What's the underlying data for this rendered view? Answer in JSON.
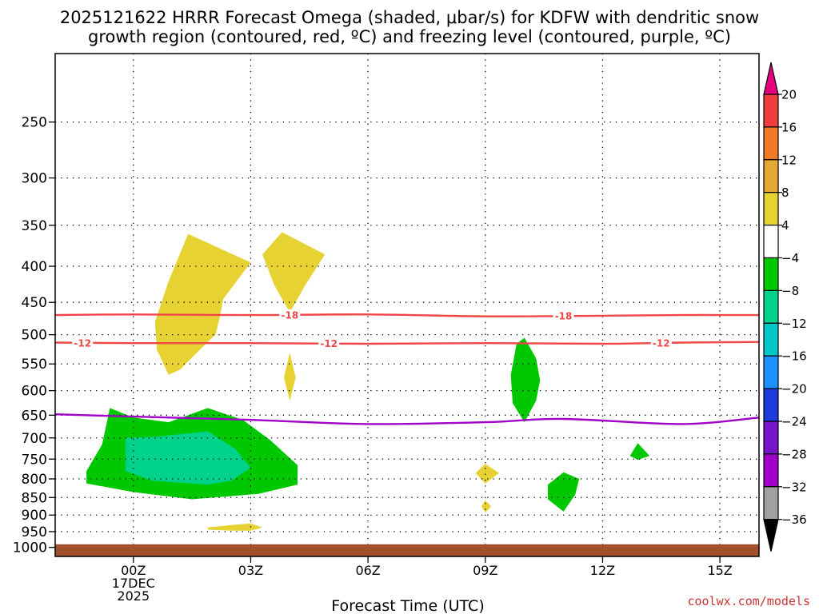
{
  "chart_data": {
    "type": "contour",
    "title_line1": "2025121622 HRRR Forecast Omega (shaded, μbar/s) for KDFW with dendritic snow",
    "title_line2": "growth region (contoured, red, ºC) and freezing level (contoured, purple, ºC)",
    "xlabel": "Forecast Time (UTC)",
    "x_ticks": [
      {
        "t": 0,
        "label": "00Z",
        "sub1": "17DEC",
        "sub2": "2025"
      },
      {
        "t": 3,
        "label": "03Z",
        "sub1": "",
        "sub2": ""
      },
      {
        "t": 6,
        "label": "06Z",
        "sub1": "",
        "sub2": ""
      },
      {
        "t": 9,
        "label": "09Z",
        "sub1": "",
        "sub2": ""
      },
      {
        "t": 12,
        "label": "12Z",
        "sub1": "",
        "sub2": ""
      },
      {
        "t": 15,
        "label": "15Z",
        "sub1": "",
        "sub2": ""
      }
    ],
    "xlim": [
      -2,
      16
    ],
    "y_ticks": [
      250,
      300,
      350,
      400,
      450,
      500,
      550,
      600,
      650,
      700,
      750,
      800,
      850,
      900,
      950,
      1000
    ],
    "ylim_hpa": [
      200,
      1030
    ],
    "colorbar": {
      "labels": [
        "20",
        "16",
        "12",
        "8",
        "4",
        "−4",
        "−8",
        "−12",
        "−16",
        "−20",
        "−24",
        "−28",
        "−32",
        "−36"
      ],
      "colors": [
        "#e6007e",
        "#f03c3c",
        "#f07a28",
        "#e6a832",
        "#e6d232",
        "#ffffff",
        "#00c800",
        "#00d28c",
        "#00c8c8",
        "#1e90ff",
        "#1e3cdc",
        "#7814c8",
        "#a000c8",
        "#a0a0a0",
        "#000000"
      ]
    },
    "contours": [
      {
        "name": "dgz-minus18",
        "color": "#f04646",
        "labels": [
          "-18",
          "-18"
        ],
        "points": [
          [
            -2,
            469
          ],
          [
            0,
            468
          ],
          [
            3,
            469
          ],
          [
            6,
            468
          ],
          [
            9,
            471
          ],
          [
            12,
            470
          ],
          [
            14,
            469
          ],
          [
            16,
            469
          ]
        ]
      },
      {
        "name": "dgz-minus12",
        "color": "#f04646",
        "labels": [
          "-12",
          "-12",
          "-12"
        ],
        "points": [
          [
            -2,
            513
          ],
          [
            0,
            514
          ],
          [
            3,
            514
          ],
          [
            6,
            515
          ],
          [
            9,
            514
          ],
          [
            12,
            515
          ],
          [
            14,
            513
          ],
          [
            16,
            512
          ]
        ]
      },
      {
        "name": "freezing-level",
        "color": "#a000c8",
        "labels": [],
        "points": [
          [
            -2,
            648
          ],
          [
            0,
            653
          ],
          [
            3,
            660
          ],
          [
            6,
            669
          ],
          [
            9,
            665
          ],
          [
            11,
            658
          ],
          [
            14,
            669
          ],
          [
            16,
            655
          ]
        ]
      }
    ],
    "regions": [
      {
        "name": "omega-plus4-upper-left",
        "value_band": "4 to 8",
        "color": "#e6d232",
        "points": [
          [
            1.4,
            360
          ],
          [
            2.1,
            375
          ],
          [
            3,
            395
          ],
          [
            2.3,
            445
          ],
          [
            2.2,
            475
          ],
          [
            2.1,
            500
          ],
          [
            1.7,
            525
          ],
          [
            1.2,
            560
          ],
          [
            0.9,
            570
          ],
          [
            0.6,
            525
          ],
          [
            0.55,
            480
          ],
          [
            0.9,
            420
          ]
        ]
      },
      {
        "name": "omega-plus4-upper-right",
        "value_band": "4 to 8",
        "color": "#e6d232",
        "points": [
          [
            3.3,
            385
          ],
          [
            3.8,
            358
          ],
          [
            4.3,
            370
          ],
          [
            4.9,
            385
          ],
          [
            4.4,
            425
          ],
          [
            4,
            465
          ],
          [
            3.6,
            425
          ]
        ]
      },
      {
        "name": "omega-plus4-spike",
        "value_band": "4 to 8",
        "color": "#e6d232",
        "points": [
          [
            4,
            530
          ],
          [
            4.15,
            575
          ],
          [
            4,
            620
          ],
          [
            3.85,
            575
          ]
        ]
      },
      {
        "name": "omega-plus4-small-1",
        "value_band": "4 to 8",
        "color": "#e6d232",
        "points": [
          [
            9,
            762
          ],
          [
            9.35,
            785
          ],
          [
            9,
            812
          ],
          [
            8.75,
            785
          ]
        ]
      },
      {
        "name": "omega-plus4-small-2",
        "value_band": "4 to 8",
        "color": "#e6d232",
        "points": [
          [
            9,
            858
          ],
          [
            9.15,
            875
          ],
          [
            9,
            893
          ],
          [
            8.9,
            875
          ]
        ]
      },
      {
        "name": "omega-plus4-bottom",
        "value_band": "4 to 8",
        "color": "#e6d232",
        "points": [
          [
            1.9,
            937
          ],
          [
            2.5,
            930
          ],
          [
            3,
            925
          ],
          [
            3.3,
            937
          ],
          [
            3,
            947
          ],
          [
            2.5,
            947
          ],
          [
            1.9,
            944
          ]
        ]
      },
      {
        "name": "omega-minus4-main",
        "value_band": "-4 to -8",
        "color": "#00c800",
        "points": [
          [
            -0.6,
            635
          ],
          [
            0,
            655
          ],
          [
            0.9,
            665
          ],
          [
            1.9,
            635
          ],
          [
            2.8,
            660
          ],
          [
            3.5,
            705
          ],
          [
            4.2,
            765
          ],
          [
            4.2,
            815
          ],
          [
            3.2,
            840
          ],
          [
            1.5,
            855
          ],
          [
            0,
            835
          ],
          [
            -1.2,
            812
          ],
          [
            -1.2,
            780
          ],
          [
            -0.8,
            715
          ]
        ]
      },
      {
        "name": "omega-minus8-core",
        "value_band": "-8 to -12",
        "color": "#00d28c",
        "points": [
          [
            -0.2,
            700
          ],
          [
            0.6,
            697
          ],
          [
            1.9,
            685
          ],
          [
            2.6,
            725
          ],
          [
            3,
            772
          ],
          [
            2.5,
            805
          ],
          [
            1.9,
            815
          ],
          [
            0.5,
            805
          ],
          [
            -0.2,
            780
          ]
        ]
      },
      {
        "name": "omega-minus4-column",
        "value_band": "-4 to -8",
        "color": "#00c800",
        "points": [
          [
            9.8,
            515
          ],
          [
            10,
            505
          ],
          [
            10.3,
            540
          ],
          [
            10.4,
            580
          ],
          [
            10.3,
            620
          ],
          [
            10,
            665
          ],
          [
            9.7,
            625
          ],
          [
            9.65,
            570
          ]
        ]
      },
      {
        "name": "omega-minus4-low",
        "value_band": "-4 to -8",
        "color": "#00c800",
        "points": [
          [
            11,
            783
          ],
          [
            11.4,
            800
          ],
          [
            11.3,
            842
          ],
          [
            11,
            890
          ],
          [
            10.6,
            855
          ],
          [
            10.6,
            815
          ]
        ]
      },
      {
        "name": "omega-minus4-small",
        "value_band": "-4 to -8",
        "color": "#00c800",
        "points": [
          [
            12.9,
            712
          ],
          [
            13.2,
            742
          ],
          [
            12.9,
            752
          ],
          [
            12.7,
            742
          ]
        ]
      }
    ],
    "ground": {
      "color": "#a0522d",
      "top_hpa": 990
    },
    "grid": true,
    "credit": "coolwx.com/models"
  }
}
